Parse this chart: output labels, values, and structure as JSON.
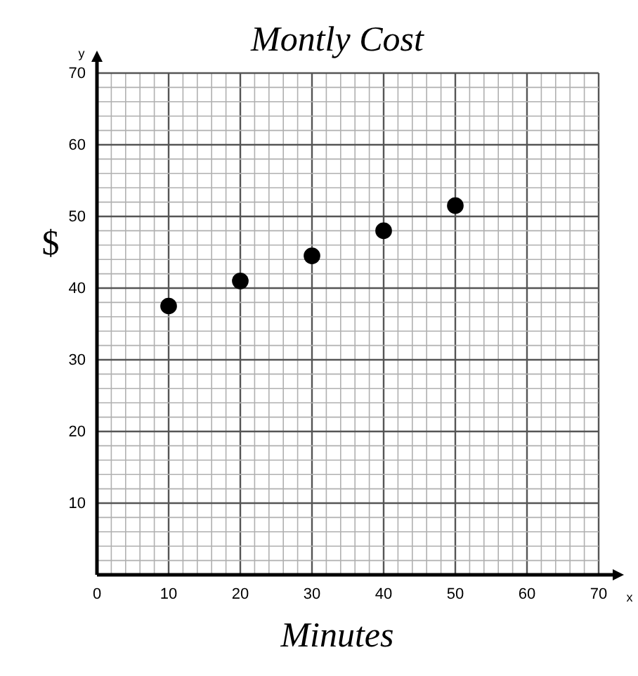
{
  "chart_data": {
    "type": "scatter",
    "title": "Montly Cost",
    "xlabel": "Minutes",
    "ylabel": "$",
    "annotations": [
      "x",
      "y"
    ],
    "x": [
      10,
      20,
      30,
      40,
      50
    ],
    "series": [
      {
        "color": "#000000",
        "values": [
          37.5,
          41,
          44.5,
          48,
          51.5
        ]
      }
    ],
    "marker": "circle",
    "grid": true,
    "xlim": [
      0,
      70
    ],
    "ylim": [
      0,
      70
    ],
    "xticks": [
      0,
      {
        "value": 2,
        "label": null
      },
      {
        "value": 4,
        "label": null
      },
      {
        "value": 6,
        "label": null
      },
      {
        "value": 8,
        "label": null
      },
      10,
      {
        "value": 12,
        "label": null
      },
      {
        "value": 14,
        "label": null
      },
      {
        "value": 16,
        "label": null
      },
      {
        "value": 18,
        "label": null
      },
      20,
      {
        "value": 22,
        "label": null
      },
      {
        "value": 24,
        "label": null
      },
      {
        "value": 26,
        "label": null
      },
      {
        "value": 28,
        "label": null
      },
      30,
      {
        "value": 32,
        "label": null
      },
      {
        "value": 34,
        "label": null
      },
      {
        "value": 36,
        "label": null
      },
      {
        "value": 38,
        "label": null
      },
      40,
      {
        "value": 42,
        "label": null
      },
      {
        "value": 44,
        "label": null
      },
      {
        "value": 46,
        "label": null
      },
      {
        "value": 48,
        "label": null
      },
      50,
      {
        "value": 52,
        "label": null
      },
      {
        "value": 54,
        "label": null
      },
      {
        "value": 56,
        "label": null
      },
      {
        "value": 58,
        "label": null
      },
      60,
      {
        "value": 62,
        "label": null
      },
      {
        "value": 64,
        "label": null
      },
      {
        "value": 66,
        "label": null
      },
      {
        "value": 68,
        "label": null
      },
      70
    ],
    "yticks": [
      {
        "value": 2,
        "label": null
      },
      {
        "value": 4,
        "label": null
      },
      {
        "value": 6,
        "label": null
      },
      {
        "value": 8,
        "label": null
      },
      10,
      {
        "value": 12,
        "label": null
      },
      {
        "value": 14,
        "label": null
      },
      {
        "value": 16,
        "label": null
      },
      {
        "value": 18,
        "label": null
      },
      20,
      {
        "value": 22,
        "label": null
      },
      {
        "value": 24,
        "label": null
      },
      {
        "value": 26,
        "label": null
      },
      {
        "value": 28,
        "label": null
      },
      30,
      {
        "value": 32,
        "label": null
      },
      {
        "value": 34,
        "label": null
      },
      {
        "value": 36,
        "label": null
      },
      {
        "value": 38,
        "label": null
      },
      40,
      {
        "value": 42,
        "label": null
      },
      {
        "value": 44,
        "label": null
      },
      {
        "value": 46,
        "label": null
      },
      {
        "value": 48,
        "label": null
      },
      50,
      {
        "value": 52,
        "label": null
      },
      {
        "value": 54,
        "label": null
      },
      {
        "value": 56,
        "label": null
      },
      {
        "value": 58,
        "label": null
      },
      60,
      {
        "value": 62,
        "label": null
      },
      {
        "value": 64,
        "label": null
      },
      {
        "value": 66,
        "label": null
      },
      {
        "value": 68,
        "label": null
      },
      70
    ]
  }
}
